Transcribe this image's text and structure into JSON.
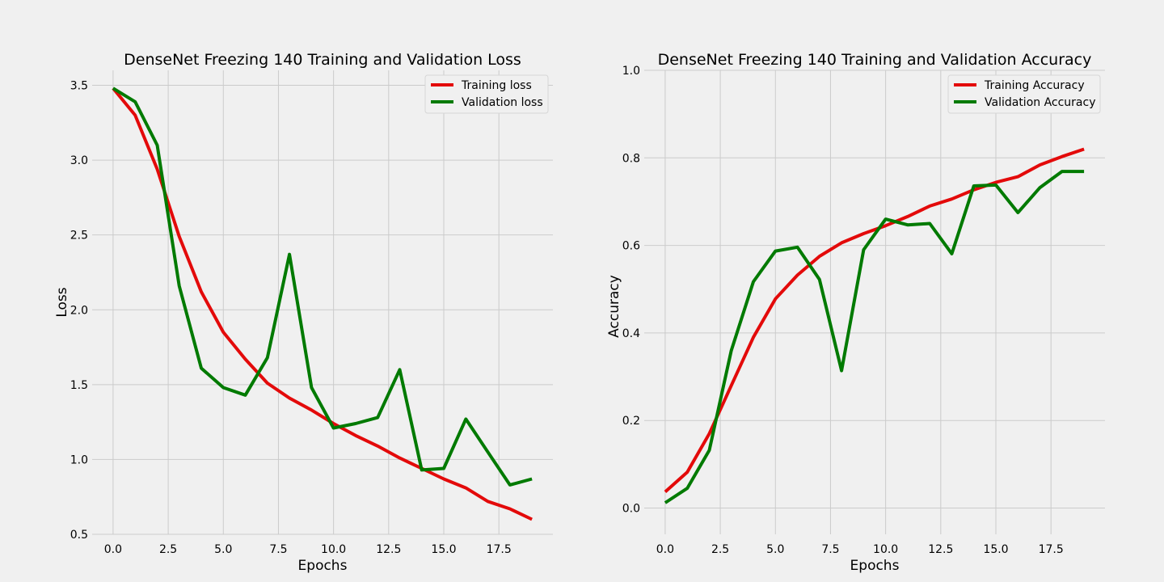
{
  "chart_data": [
    {
      "type": "line",
      "title": "DenseNet Freezing 140 Training and Validation Loss",
      "xlabel": "Epochs",
      "ylabel": "Loss",
      "xlim": [
        -0.95,
        19.95
      ],
      "ylim": [
        0.5,
        3.6
      ],
      "xticks": [
        0.0,
        2.5,
        5.0,
        7.5,
        10.0,
        12.5,
        15.0,
        17.5
      ],
      "xtick_labels": [
        "0.0",
        "2.5",
        "5.0",
        "7.5",
        "10.0",
        "12.5",
        "15.0",
        "17.5"
      ],
      "yticks": [
        0.5,
        1.0,
        1.5,
        2.0,
        2.5,
        3.0,
        3.5
      ],
      "ytick_labels": [
        "0.5",
        "1.0",
        "1.5",
        "2.0",
        "2.5",
        "3.0",
        "3.5"
      ],
      "grid": true,
      "legend_position": "top-right",
      "x": [
        0,
        1,
        2,
        3,
        4,
        5,
        6,
        7,
        8,
        9,
        10,
        11,
        12,
        13,
        14,
        15,
        16,
        17,
        18,
        19
      ],
      "series": [
        {
          "name": "Training loss",
          "color": "#e30a0a",
          "values": [
            3.48,
            3.3,
            2.94,
            2.49,
            2.12,
            1.85,
            1.67,
            1.51,
            1.41,
            1.33,
            1.24,
            1.16,
            1.09,
            1.01,
            0.94,
            0.87,
            0.81,
            0.72,
            0.67,
            0.6
          ]
        },
        {
          "name": "Validation loss",
          "color": "#007a00",
          "values": [
            3.48,
            3.39,
            3.1,
            2.16,
            1.61,
            1.48,
            1.43,
            1.68,
            2.37,
            1.48,
            1.21,
            1.24,
            1.28,
            1.6,
            0.93,
            0.94,
            1.27,
            1.05,
            0.83,
            0.87
          ]
        }
      ]
    },
    {
      "type": "line",
      "title": "DenseNet Freezing 140 Training and Validation Accuracy",
      "xlabel": "Epochs",
      "ylabel": "Accuracy",
      "xlim": [
        -0.95,
        19.95
      ],
      "ylim": [
        -0.06,
        1.0
      ],
      "xticks": [
        0.0,
        2.5,
        5.0,
        7.5,
        10.0,
        12.5,
        15.0,
        17.5
      ],
      "xtick_labels": [
        "0.0",
        "2.5",
        "5.0",
        "7.5",
        "10.0",
        "12.5",
        "15.0",
        "17.5"
      ],
      "yticks": [
        0.0,
        0.2,
        0.4,
        0.6,
        0.8,
        1.0
      ],
      "ytick_labels": [
        "0.0",
        "0.2",
        "0.4",
        "0.6",
        "0.8",
        "1.0"
      ],
      "grid": true,
      "legend_position": "top-right",
      "x": [
        0,
        1,
        2,
        3,
        4,
        5,
        6,
        7,
        8,
        9,
        10,
        11,
        12,
        13,
        14,
        15,
        16,
        17,
        18,
        19
      ],
      "series": [
        {
          "name": "Training Accuracy",
          "color": "#e30a0a",
          "values": [
            0.037,
            0.082,
            0.17,
            0.28,
            0.39,
            0.478,
            0.532,
            0.575,
            0.606,
            0.627,
            0.645,
            0.666,
            0.69,
            0.706,
            0.727,
            0.744,
            0.757,
            0.784,
            0.803,
            0.82
          ]
        },
        {
          "name": "Validation Accuracy",
          "color": "#007a00",
          "values": [
            0.012,
            0.045,
            0.132,
            0.36,
            0.517,
            0.587,
            0.596,
            0.522,
            0.314,
            0.59,
            0.66,
            0.647,
            0.65,
            0.581,
            0.736,
            0.738,
            0.675,
            0.732,
            0.769,
            0.769
          ]
        }
      ]
    }
  ]
}
